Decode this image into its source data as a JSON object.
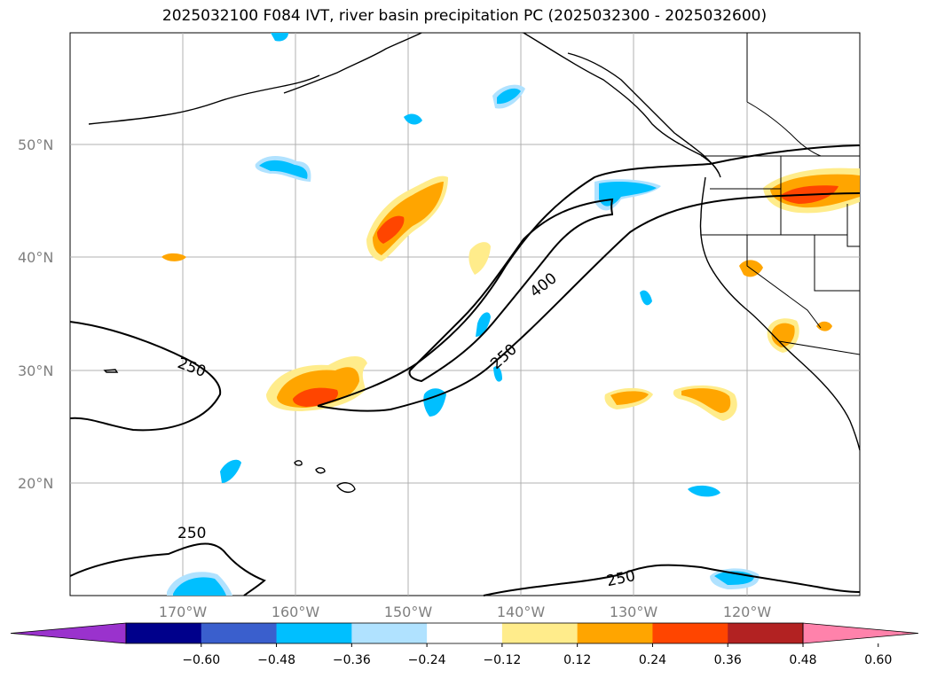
{
  "title": "2025032100 F084 IVT, river basin precipitation PC (2025032300 - 2025032600)",
  "lat_labels": [
    "50°N",
    "40°N",
    "30°N",
    "20°N"
  ],
  "lon_labels": [
    "170°W",
    "160°W",
    "150°W",
    "140°W",
    "130°W",
    "120°W"
  ],
  "colorbar": {
    "ticks": [
      "−0.60",
      "−0.48",
      "−0.36",
      "−0.24",
      "−0.12",
      "0.12",
      "0.24",
      "0.36",
      "0.48",
      "0.60"
    ],
    "colors": [
      "#9a32cd",
      "#00008b",
      "#3a5fcd",
      "#00bfff",
      "#b0e2ff",
      "#ffffff",
      "#ffec8b",
      "#ffa500",
      "#ff4500",
      "#b22222",
      "#ff82ab"
    ]
  },
  "contour_labels": [
    "250",
    "400",
    "250",
    "250",
    "250"
  ],
  "chart_data": {
    "type": "map",
    "variable_contours": "IVT",
    "contour_levels": [
      250,
      400
    ],
    "fill_variable": "river basin precipitation PC",
    "fill_levels": [
      -0.6,
      -0.48,
      -0.36,
      -0.24,
      -0.12,
      0.12,
      0.24,
      0.36,
      0.48,
      0.6
    ],
    "lat_range": [
      10,
      60
    ],
    "lon_range": [
      -180,
      -110
    ],
    "grid": true
  }
}
